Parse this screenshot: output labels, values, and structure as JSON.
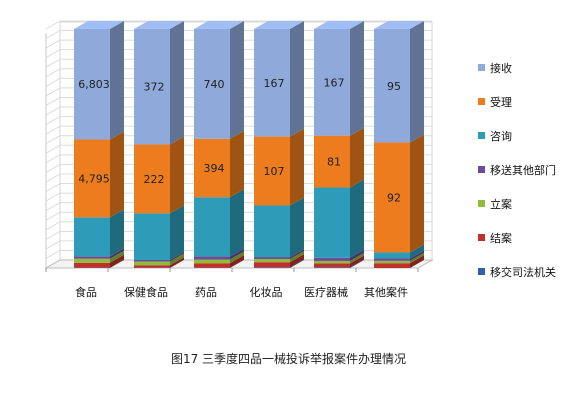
{
  "chart_data": {
    "type": "bar",
    "stacked": true,
    "normalized_percent": true,
    "three_d": true,
    "caption": "图17   三季度四品一械投诉举报案件办理情况",
    "categories": [
      "食品",
      "保健食品",
      "药品",
      "化妆品",
      "医疗器械",
      "其他案件"
    ],
    "legend_position": "right",
    "grid": true,
    "series": [
      {
        "name": "移交司法机关",
        "color": "#2E5FA8",
        "values": [
          20,
          1,
          2,
          1,
          1,
          0
        ],
        "value_labels": [
          "",
          "",
          "",
          "",
          "",
          ""
        ]
      },
      {
        "name": "结案",
        "color": "#C0302B",
        "values": [
          300,
          8,
          30,
          8,
          6,
          4
        ],
        "value_labels": [
          "",
          "",
          "",
          "",
          "",
          ""
        ]
      },
      {
        "name": "立案",
        "color": "#8FBD3A",
        "values": [
          250,
          12,
          25,
          5,
          4,
          2
        ],
        "value_labels": [
          "",
          "",
          "",
          "",
          "",
          ""
        ]
      },
      {
        "name": "移送其他部门",
        "color": "#6B4C9A",
        "values": [
          150,
          5,
          20,
          3,
          5,
          2
        ],
        "value_labels": [
          "",
          "",
          "",
          "",
          "",
          ""
        ]
      },
      {
        "name": "咨询",
        "color": "#2E9CB8",
        "values": [
          2400,
          150,
          400,
          80,
          110,
          5
        ],
        "value_labels": [
          "",
          "",
          "",
          "",
          "",
          ""
        ]
      },
      {
        "name": "受理",
        "color": "#EC7C1E",
        "values": [
          4795,
          222,
          394,
          107,
          81,
          92
        ],
        "value_labels": [
          "4,795",
          "222",
          "394",
          "107",
          "81",
          "92"
        ]
      },
      {
        "name": "接收",
        "color": "#8FA9DB",
        "values": [
          6803,
          372,
          740,
          167,
          167,
          95
        ],
        "value_labels": [
          "6,803",
          "372",
          "740",
          "167",
          "167",
          "95"
        ]
      }
    ],
    "legend_order": [
      "接收",
      "受理",
      "咨询",
      "移送其他部门",
      "立案",
      "结案",
      "移交司法机关"
    ]
  }
}
